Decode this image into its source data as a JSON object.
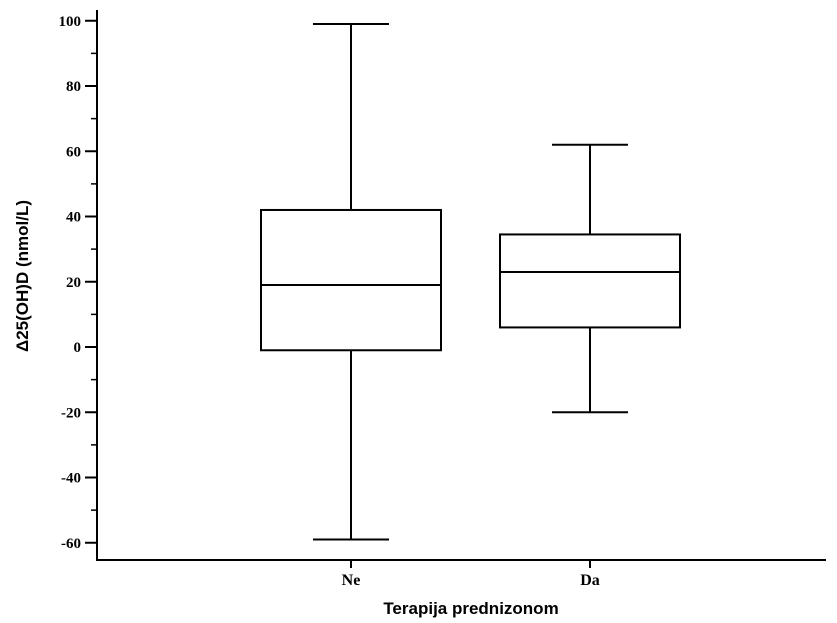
{
  "chart_data": {
    "type": "box",
    "xlabel": "Terapija prednizonom",
    "ylabel": "Δ25(OH)D (nmol/L)",
    "categories": [
      "Ne",
      "Da"
    ],
    "boxes": [
      {
        "category": "Ne",
        "min": -59,
        "q1": -1,
        "median": 19,
        "q3": 42,
        "max": 99
      },
      {
        "category": "Da",
        "min": -20,
        "q1": 6,
        "median": 23,
        "q3": 34.5,
        "max": 62
      }
    ],
    "ylim": [
      -62,
      104
    ],
    "yticks": [
      -60,
      -40,
      -20,
      0,
      20,
      40,
      60,
      80,
      100
    ],
    "yticks_minor": [
      -50,
      -30,
      -10,
      10,
      30,
      50,
      70,
      90
    ],
    "grid": false,
    "colors": {
      "stroke": "#000000",
      "fill": "#ffffff"
    }
  }
}
